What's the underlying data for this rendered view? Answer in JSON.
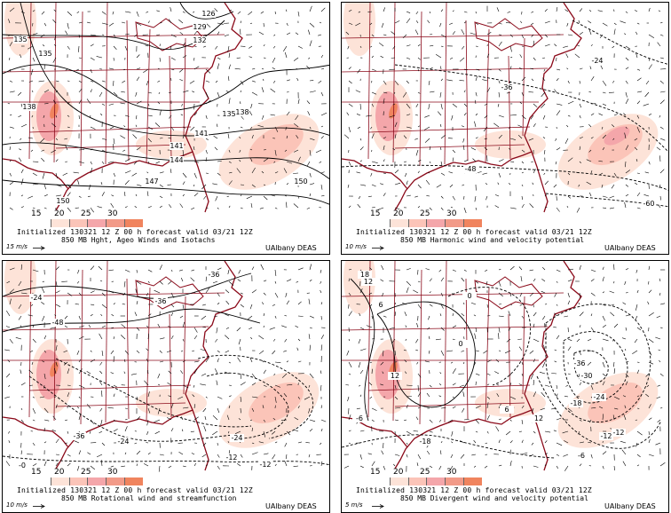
{
  "colorbar": {
    "tick_labels": [
      "15",
      "20",
      "25",
      "30"
    ],
    "colors": [
      "#ffffff",
      "#fde3d8",
      "#fbc4b8",
      "#f4a6aa",
      "#f29a88",
      "#f0845e"
    ]
  },
  "panels": [
    {
      "init_text": "Initialized 130321 12 Z  00 h forecast valid 03/21 12Z",
      "title": "850 MB Hght, Ageo Winds and Isotachs",
      "scale": "15 m/s",
      "credit": "UAlbany DEAS",
      "contour_labels": [
        "126",
        "129",
        "132",
        "135",
        "135",
        "138",
        "138",
        "141",
        "141",
        "144",
        "147",
        "150",
        "150",
        "135"
      ]
    },
    {
      "init_text": "Initialized 130321 12 Z  00 h forecast valid 03/21 12Z",
      "title": "850 MB Harmonic wind and velocity potential",
      "scale": "10 m/s",
      "credit": "UAlbany DEAS",
      "contour_labels": [
        "-24",
        "-36",
        "-48",
        "-60"
      ]
    },
    {
      "init_text": "Initialized 130321 12 Z  00 h forecast valid 03/21 12Z",
      "title": "850 MB Rotational wind and streamfunction",
      "scale": "10 m/s",
      "credit": "UAlbany DEAS",
      "contour_labels": [
        "-36",
        "-24",
        "-48",
        "-36",
        "-36",
        "-24",
        "-24",
        "-12",
        "-12",
        "-0"
      ]
    },
    {
      "init_text": "Initialized 130321 12 Z  00 h forecast valid 03/21 12Z",
      "title": "850 MB Divergent wind and velocity potential",
      "scale": "5 m/s",
      "credit": "UAlbany DEAS",
      "contour_labels": [
        "18",
        "12",
        "6",
        "0",
        "0",
        "12",
        "-12",
        "-36",
        "-30",
        "-24",
        "-18",
        "-12",
        "-6",
        "-18",
        "12",
        "-6",
        "6"
      ]
    }
  ]
}
